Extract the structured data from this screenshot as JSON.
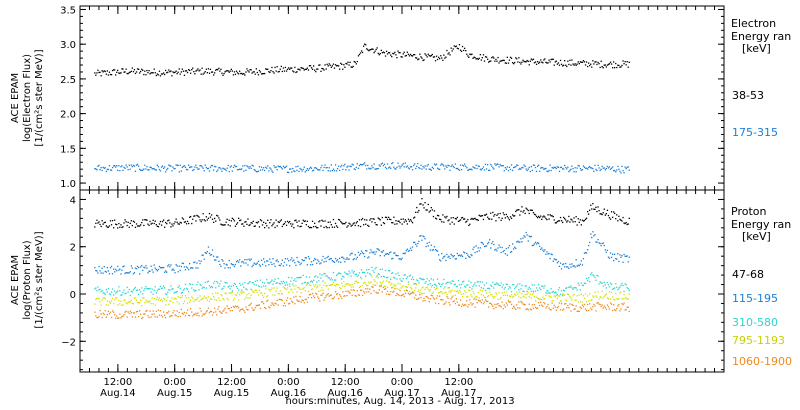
{
  "chart_data": [
    {
      "type": "scatter",
      "panel": "electron",
      "ylabel_lines": [
        "ACE EPAM",
        "log(Electron Flux)",
        "[1/(cm²s ster MeV)]"
      ],
      "ylim": [
        0.9,
        3.55
      ],
      "yticks": [
        1.0,
        1.5,
        2.0,
        2.5,
        3.0,
        3.5
      ],
      "ytick_labels": [
        "1.0",
        "1.5",
        "2.0",
        "2.5",
        "3.0",
        "3.5"
      ],
      "legend_title": [
        "Electron",
        "Energy ran",
        "[keV]"
      ],
      "legend_placement": "right",
      "x_range_hours": [
        -20,
        116
      ],
      "series": [
        {
          "name": "38-53",
          "color": "#000000",
          "points": [
            [
              -17,
              2.58
            ],
            [
              -10,
              2.62
            ],
            [
              -2,
              2.6
            ],
            [
              6,
              2.62
            ],
            [
              14,
              2.6
            ],
            [
              22,
              2.64
            ],
            [
              30,
              2.66
            ],
            [
              36,
              2.7
            ],
            [
              38,
              2.72
            ],
            [
              40,
              2.98
            ],
            [
              44,
              2.88
            ],
            [
              50,
              2.84
            ],
            [
              56,
              2.8
            ],
            [
              58,
              2.9
            ],
            [
              60,
              2.98
            ],
            [
              62,
              2.86
            ],
            [
              66,
              2.8
            ],
            [
              74,
              2.76
            ],
            [
              82,
              2.74
            ],
            [
              90,
              2.72
            ],
            [
              96,
              2.72
            ]
          ]
        },
        {
          "name": "175-315",
          "color": "#1a7fd6",
          "points": [
            [
              -17,
              1.22
            ],
            [
              -10,
              1.23
            ],
            [
              -2,
              1.22
            ],
            [
              6,
              1.22
            ],
            [
              14,
              1.22
            ],
            [
              22,
              1.21
            ],
            [
              30,
              1.22
            ],
            [
              36,
              1.24
            ],
            [
              40,
              1.26
            ],
            [
              46,
              1.26
            ],
            [
              52,
              1.24
            ],
            [
              58,
              1.24
            ],
            [
              66,
              1.24
            ],
            [
              74,
              1.22
            ],
            [
              82,
              1.22
            ],
            [
              90,
              1.22
            ],
            [
              96,
              1.2
            ]
          ]
        }
      ]
    },
    {
      "type": "scatter",
      "panel": "proton",
      "ylabel_lines": [
        "ACE EPAM",
        "log(Proton Flux)",
        "[1/(cm²s ster MeV)]"
      ],
      "ylim": [
        -3.3,
        4.4
      ],
      "yticks": [
        -2,
        0,
        2,
        4
      ],
      "ytick_labels": [
        "−2",
        "0",
        "2",
        "4"
      ],
      "legend_title": [
        "Proton",
        "Energy ran",
        "[keV]"
      ],
      "legend_placement": "right",
      "x_range_hours": [
        -20,
        116
      ],
      "series": [
        {
          "name": "47-68",
          "color": "#000000",
          "points": [
            [
              -17,
              3.0
            ],
            [
              -8,
              3.0
            ],
            [
              0,
              3.02
            ],
            [
              7,
              3.3
            ],
            [
              10,
              3.1
            ],
            [
              20,
              3.0
            ],
            [
              30,
              3.0
            ],
            [
              40,
              3.05
            ],
            [
              50,
              3.15
            ],
            [
              52,
              3.9
            ],
            [
              56,
              3.2
            ],
            [
              62,
              3.1
            ],
            [
              66,
              3.3
            ],
            [
              70,
              3.3
            ],
            [
              74,
              3.6
            ],
            [
              76,
              3.3
            ],
            [
              86,
              3.1
            ],
            [
              88,
              3.7
            ],
            [
              94,
              3.2
            ],
            [
              96,
              3.1
            ]
          ]
        },
        {
          "name": "115-195",
          "color": "#1a7fd6",
          "points": [
            [
              -17,
              1.05
            ],
            [
              -8,
              1.05
            ],
            [
              0,
              1.1
            ],
            [
              5,
              1.3
            ],
            [
              7,
              1.9
            ],
            [
              10,
              1.3
            ],
            [
              20,
              1.35
            ],
            [
              30,
              1.45
            ],
            [
              38,
              1.6
            ],
            [
              42,
              1.8
            ],
            [
              48,
              1.6
            ],
            [
              52,
              2.4
            ],
            [
              56,
              1.6
            ],
            [
              62,
              1.7
            ],
            [
              66,
              2.2
            ],
            [
              70,
              1.8
            ],
            [
              74,
              2.5
            ],
            [
              78,
              1.8
            ],
            [
              82,
              1.2
            ],
            [
              86,
              1.4
            ],
            [
              88,
              2.6
            ],
            [
              92,
              1.6
            ],
            [
              96,
              1.5
            ]
          ]
        },
        {
          "name": "310-580",
          "color": "#2ad6d0",
          "points": [
            [
              -17,
              0.15
            ],
            [
              -8,
              0.15
            ],
            [
              0,
              0.2
            ],
            [
              8,
              0.45
            ],
            [
              12,
              0.3
            ],
            [
              20,
              0.5
            ],
            [
              30,
              0.7
            ],
            [
              38,
              0.85
            ],
            [
              42,
              1.0
            ],
            [
              48,
              0.7
            ],
            [
              54,
              0.5
            ],
            [
              62,
              0.4
            ],
            [
              70,
              0.3
            ],
            [
              78,
              0.25
            ],
            [
              82,
              0.1
            ],
            [
              86,
              0.4
            ],
            [
              88,
              0.8
            ],
            [
              92,
              0.3
            ],
            [
              96,
              0.3
            ]
          ]
        },
        {
          "name": "795-1193",
          "color": "#d6e000",
          "points": [
            [
              -17,
              -0.3
            ],
            [
              -8,
              -0.3
            ],
            [
              0,
              -0.25
            ],
            [
              8,
              -0.1
            ],
            [
              14,
              -0.05
            ],
            [
              20,
              0.1
            ],
            [
              30,
              0.3
            ],
            [
              38,
              0.45
            ],
            [
              42,
              0.6
            ],
            [
              48,
              0.35
            ],
            [
              54,
              0.15
            ],
            [
              62,
              0.05
            ],
            [
              70,
              -0.05
            ],
            [
              78,
              -0.1
            ],
            [
              86,
              -0.15
            ],
            [
              90,
              0.0
            ],
            [
              96,
              -0.1
            ]
          ]
        },
        {
          "name": "1060-1900",
          "color": "#ee8a1e",
          "points": [
            [
              -17,
              -0.85
            ],
            [
              -8,
              -0.85
            ],
            [
              0,
              -0.8
            ],
            [
              8,
              -0.7
            ],
            [
              14,
              -0.6
            ],
            [
              20,
              -0.4
            ],
            [
              30,
              -0.1
            ],
            [
              38,
              0.05
            ],
            [
              42,
              0.25
            ],
            [
              48,
              0.05
            ],
            [
              54,
              -0.2
            ],
            [
              62,
              -0.35
            ],
            [
              70,
              -0.45
            ],
            [
              78,
              -0.5
            ],
            [
              86,
              -0.55
            ],
            [
              90,
              -0.5
            ],
            [
              96,
              -0.55
            ]
          ]
        }
      ]
    }
  ],
  "xaxis": {
    "ticks": [
      {
        "h": -12,
        "top": "12:00",
        "bottom": "Aug.14"
      },
      {
        "h": 0,
        "top": "0:00",
        "bottom": "Aug.15"
      },
      {
        "h": 12,
        "top": "12:00",
        "bottom": "Aug.15"
      },
      {
        "h": 24,
        "top": "0:00",
        "bottom": "Aug.16"
      },
      {
        "h": 36,
        "top": "12:00",
        "bottom": "Aug.16"
      },
      {
        "h": 48,
        "top": "0:00",
        "bottom": "Aug.17"
      },
      {
        "h": 60,
        "top": "12:00",
        "bottom": "Aug.17"
      }
    ],
    "label": "hours:minutes, Aug. 14, 2013 - Aug. 17, 2013"
  }
}
